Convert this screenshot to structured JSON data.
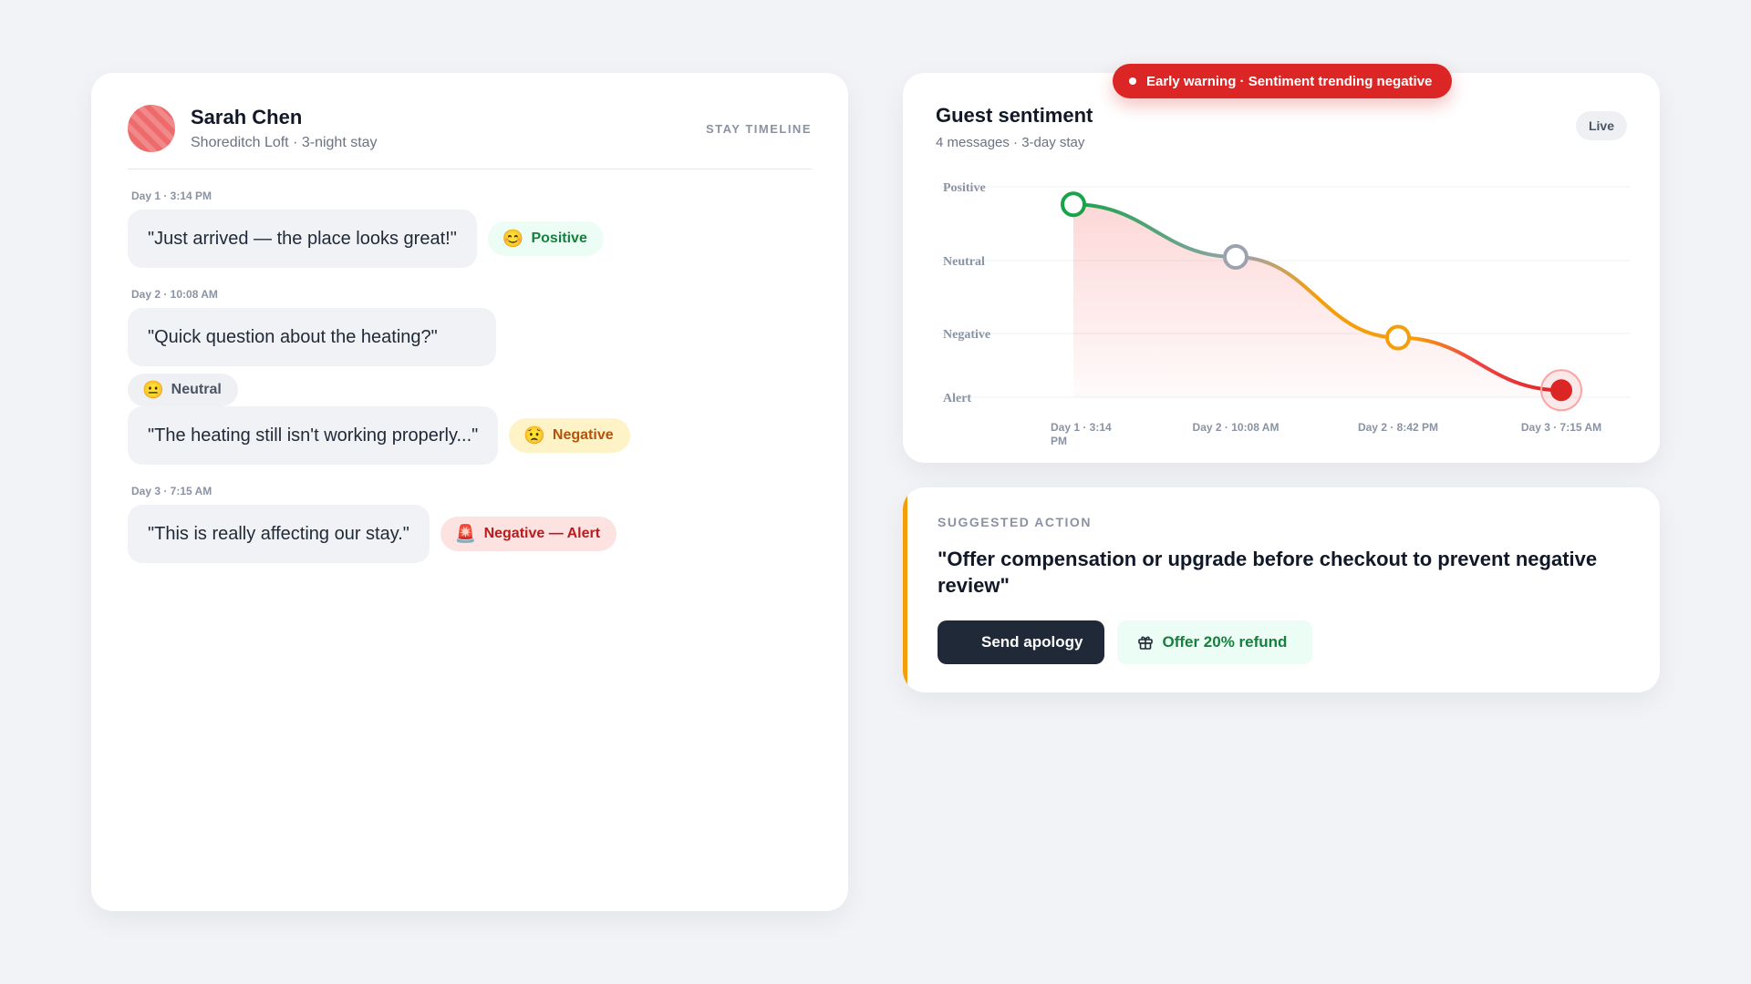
{
  "guest": {
    "name": "Sarah Chen",
    "subtitle": "Shoreditch Loft · 3-night stay",
    "timeline_label": "STAY TIMELINE"
  },
  "messages": [
    {
      "time": "Day 1 · 3:14 PM",
      "text": "\"Just arrived — the place looks great!\"",
      "badge_emoji": "😊",
      "badge_label": "Positive",
      "sentiment": "positive"
    },
    {
      "time": "Day 2 · 10:08 AM",
      "text": "\"Quick question about the heating?\"",
      "badge_emoji": "😐",
      "badge_label": "Neutral",
      "sentiment": "neutral"
    },
    {
      "time": "Day 2 · 8:42 PM",
      "text": "\"The heating still isn't working properly...\"",
      "badge_emoji": "😟",
      "badge_label": "Negative",
      "sentiment": "negative"
    },
    {
      "time": "Day 3 · 7:15 AM",
      "text": "\"This is really affecting our stay.\"",
      "badge_emoji": "🚨",
      "badge_label": "Negative — Alert",
      "sentiment": "alert"
    }
  ],
  "sentiment": {
    "title": "Guest sentiment",
    "subtitle": "4 messages · 3-day stay",
    "live_label": "Live",
    "warning": "Early warning · Sentiment trending negative"
  },
  "chart_data": {
    "type": "line",
    "y_categories": [
      "Alert",
      "Negative",
      "Neutral",
      "Positive"
    ],
    "x": [
      "Day 1 · 3:14 PM",
      "Day 2 · 10:08 AM",
      "Day 2 · 8:42 PM",
      "Day 3 · 7:15 AM"
    ],
    "series": [
      {
        "values": [
          2.75,
          2.0,
          0.85,
          0.1
        ]
      }
    ],
    "ylim": [
      0,
      3
    ],
    "grid": true,
    "point_colors": [
      "#16a34a",
      "#9ca3af",
      "#f59e0b",
      "#dc2626"
    ]
  },
  "action": {
    "label": "SUGGESTED ACTION",
    "text": "\"Offer compensation or upgrade before checkout to prevent negative review\"",
    "primary_label": "Send apology",
    "secondary_label": "Offer 20% refund",
    "secondary_icon": "gift-icon",
    "accent_color": "#f59e0b"
  }
}
